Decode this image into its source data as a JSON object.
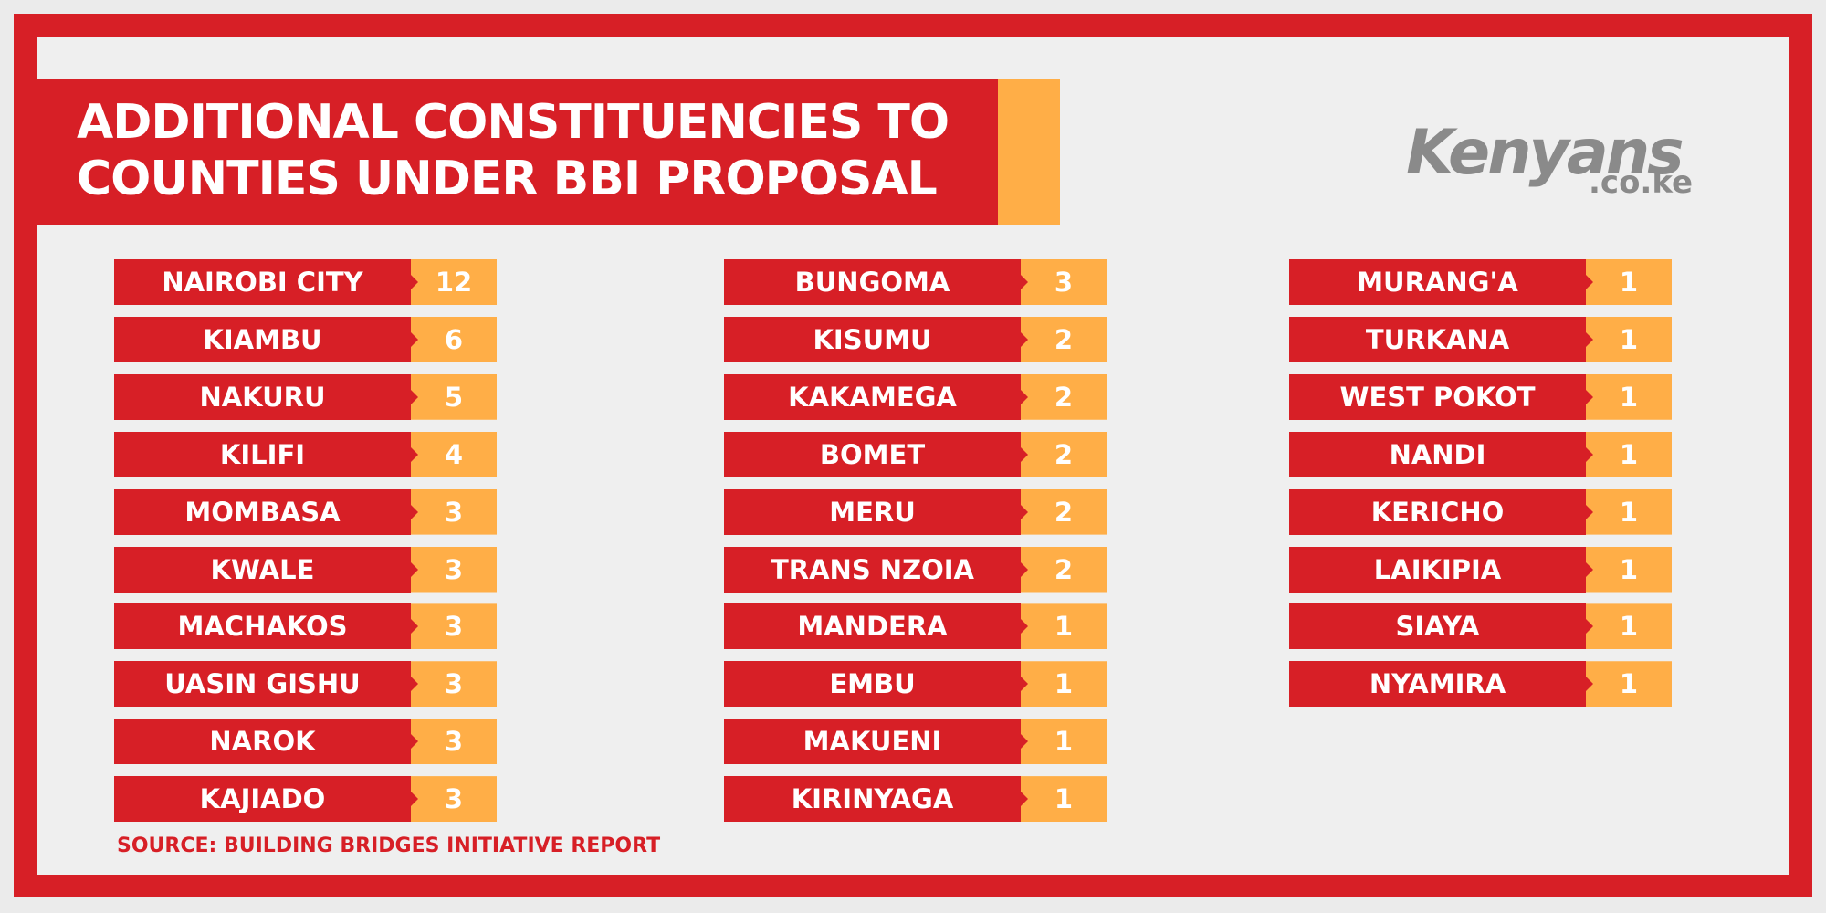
{
  "header": {
    "title": [
      "ADDITIONAL CONSTITUENCIES TO",
      "COUNTIES UNDER BBI PROPOSAL"
    ]
  },
  "logo": {
    "name": "Kenyans",
    "domain": ".co.ke"
  },
  "columns": [
    [
      {
        "name": "NAIROBI CITY",
        "value": 12
      },
      {
        "name": "KIAMBU",
        "value": 6
      },
      {
        "name": "NAKURU",
        "value": 5
      },
      {
        "name": "KILIFI",
        "value": 4
      },
      {
        "name": "MOMBASA",
        "value": 3
      },
      {
        "name": "KWALE",
        "value": 3
      },
      {
        "name": "MACHAKOS",
        "value": 3
      },
      {
        "name": "UASIN GISHU",
        "value": 3
      },
      {
        "name": "NAROK",
        "value": 3
      },
      {
        "name": "KAJIADO",
        "value": 3
      }
    ],
    [
      {
        "name": "BUNGOMA",
        "value": 3
      },
      {
        "name": "KISUMU",
        "value": 2
      },
      {
        "name": "KAKAMEGA",
        "value": 2
      },
      {
        "name": "BOMET",
        "value": 2
      },
      {
        "name": "MERU",
        "value": 2
      },
      {
        "name": "TRANS NZOIA",
        "value": 2
      },
      {
        "name": "MANDERA",
        "value": 1
      },
      {
        "name": "EMBU",
        "value": 1
      },
      {
        "name": "MAKUENI",
        "value": 1
      },
      {
        "name": "KIRINYAGA",
        "value": 1
      }
    ],
    [
      {
        "name": "MURANG'A",
        "value": 1
      },
      {
        "name": "TURKANA",
        "value": 1
      },
      {
        "name": "WEST POKOT",
        "value": 1
      },
      {
        "name": "NANDI",
        "value": 1
      },
      {
        "name": "KERICHO",
        "value": 1
      },
      {
        "name": "LAIKIPIA",
        "value": 1
      },
      {
        "name": "SIAYA",
        "value": 1
      },
      {
        "name": "NYAMIRA",
        "value": 1
      }
    ]
  ],
  "source": "SOURCE: BUILDING BRIDGES INITIATIVE REPORT"
}
